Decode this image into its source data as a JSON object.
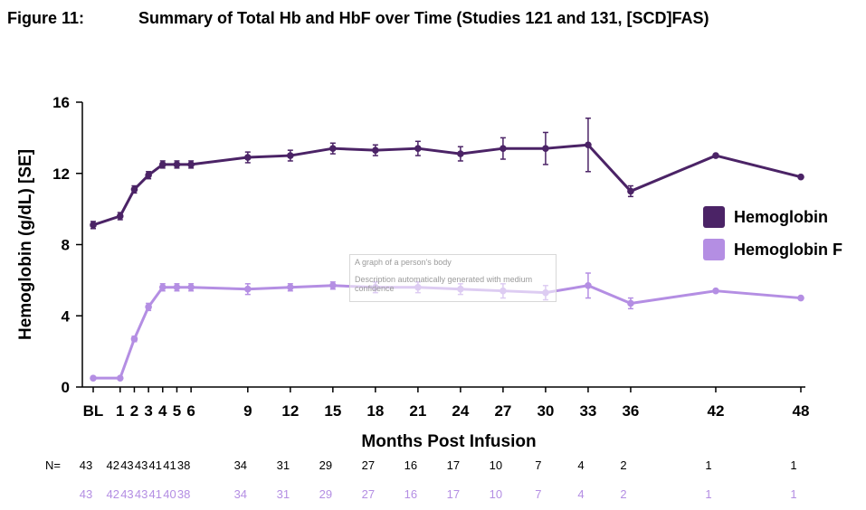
{
  "figure": {
    "label": "Figure 11:",
    "title": "Summary of Total Hb and HbF over Time (Studies 121 and 131, [SCD]FAS)"
  },
  "alt_text": {
    "caption": "A graph of a person's body",
    "note": "Description automatically generated with medium confidence"
  },
  "colors": {
    "hemoglobin": "#4b2366",
    "hemoglobin_f": "#b48ee3",
    "axis": "#000000"
  },
  "chart_data": {
    "type": "line",
    "xlabel": "Months Post Infusion",
    "ylabel": "Hemoglobin (g/dL) [SE]",
    "ylim": [
      0,
      16
    ],
    "yticks": [
      0,
      4,
      8,
      12,
      16
    ],
    "categories": [
      "BL",
      "1",
      "2",
      "3",
      "4",
      "5",
      "6",
      "9",
      "12",
      "15",
      "18",
      "21",
      "24",
      "27",
      "30",
      "33",
      "36",
      "42",
      "48"
    ],
    "x": [
      -1.9,
      0,
      1,
      2,
      3,
      4,
      5,
      9,
      12,
      15,
      18,
      21,
      24,
      27,
      30,
      33,
      36,
      42,
      48
    ],
    "legend_position": "right",
    "grid": false,
    "series": [
      {
        "name": "Hemoglobin",
        "values": [
          9.1,
          9.6,
          11.1,
          11.9,
          12.5,
          12.5,
          12.5,
          12.9,
          13.0,
          13.4,
          13.3,
          13.4,
          13.1,
          13.4,
          13.4,
          13.6,
          11.0,
          13.0,
          11.8
        ],
        "se": [
          0.2,
          0.2,
          0.2,
          0.2,
          0.2,
          0.2,
          0.2,
          0.3,
          0.3,
          0.3,
          0.3,
          0.4,
          0.4,
          0.6,
          0.9,
          1.5,
          0.3,
          0,
          0
        ],
        "n": [
          "43",
          "42",
          "43",
          "43",
          "41",
          "41",
          "38",
          "34",
          "31",
          "29",
          "27",
          "16",
          "17",
          "10",
          "7",
          "4",
          "2",
          "1",
          "1"
        ]
      },
      {
        "name": "Hemoglobin F",
        "values": [
          0.5,
          0.5,
          2.7,
          4.5,
          5.6,
          5.6,
          5.6,
          5.5,
          5.6,
          5.7,
          5.6,
          5.6,
          5.5,
          5.4,
          5.3,
          5.7,
          4.7,
          5.4,
          5.0
        ],
        "se": [
          0.05,
          0.05,
          0.15,
          0.2,
          0.2,
          0.2,
          0.2,
          0.3,
          0.2,
          0.2,
          0.3,
          0.3,
          0.3,
          0.4,
          0.4,
          0.7,
          0.3,
          0,
          0
        ],
        "n": [
          "43",
          "42",
          "43",
          "43",
          "41",
          "40",
          "38",
          "34",
          "31",
          "29",
          "27",
          "16",
          "17",
          "10",
          "7",
          "4",
          "2",
          "1",
          "1"
        ]
      }
    ],
    "n_row_label": "N="
  }
}
